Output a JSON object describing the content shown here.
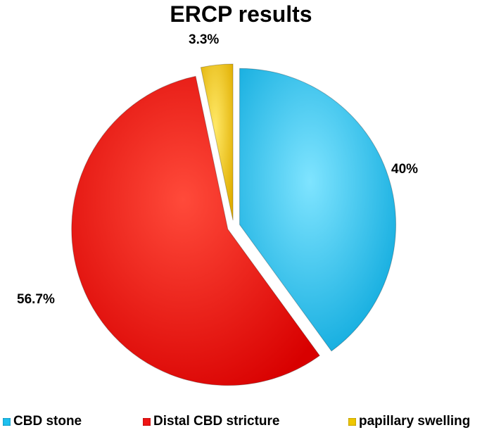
{
  "chart_data": {
    "type": "pie",
    "title": "ERCP results",
    "slices": [
      {
        "label": "CBD stone",
        "value": 40,
        "display": "40%",
        "color": "#1EC0F0"
      },
      {
        "label": "Distal CBD stricture",
        "value": 56.7,
        "display": "56.7%",
        "color": "#F01414"
      },
      {
        "label": "papillary swelling",
        "value": 3.3,
        "display": "3.3%",
        "color": "#F0C800"
      }
    ],
    "exploded": true,
    "legend_position": "bottom"
  }
}
